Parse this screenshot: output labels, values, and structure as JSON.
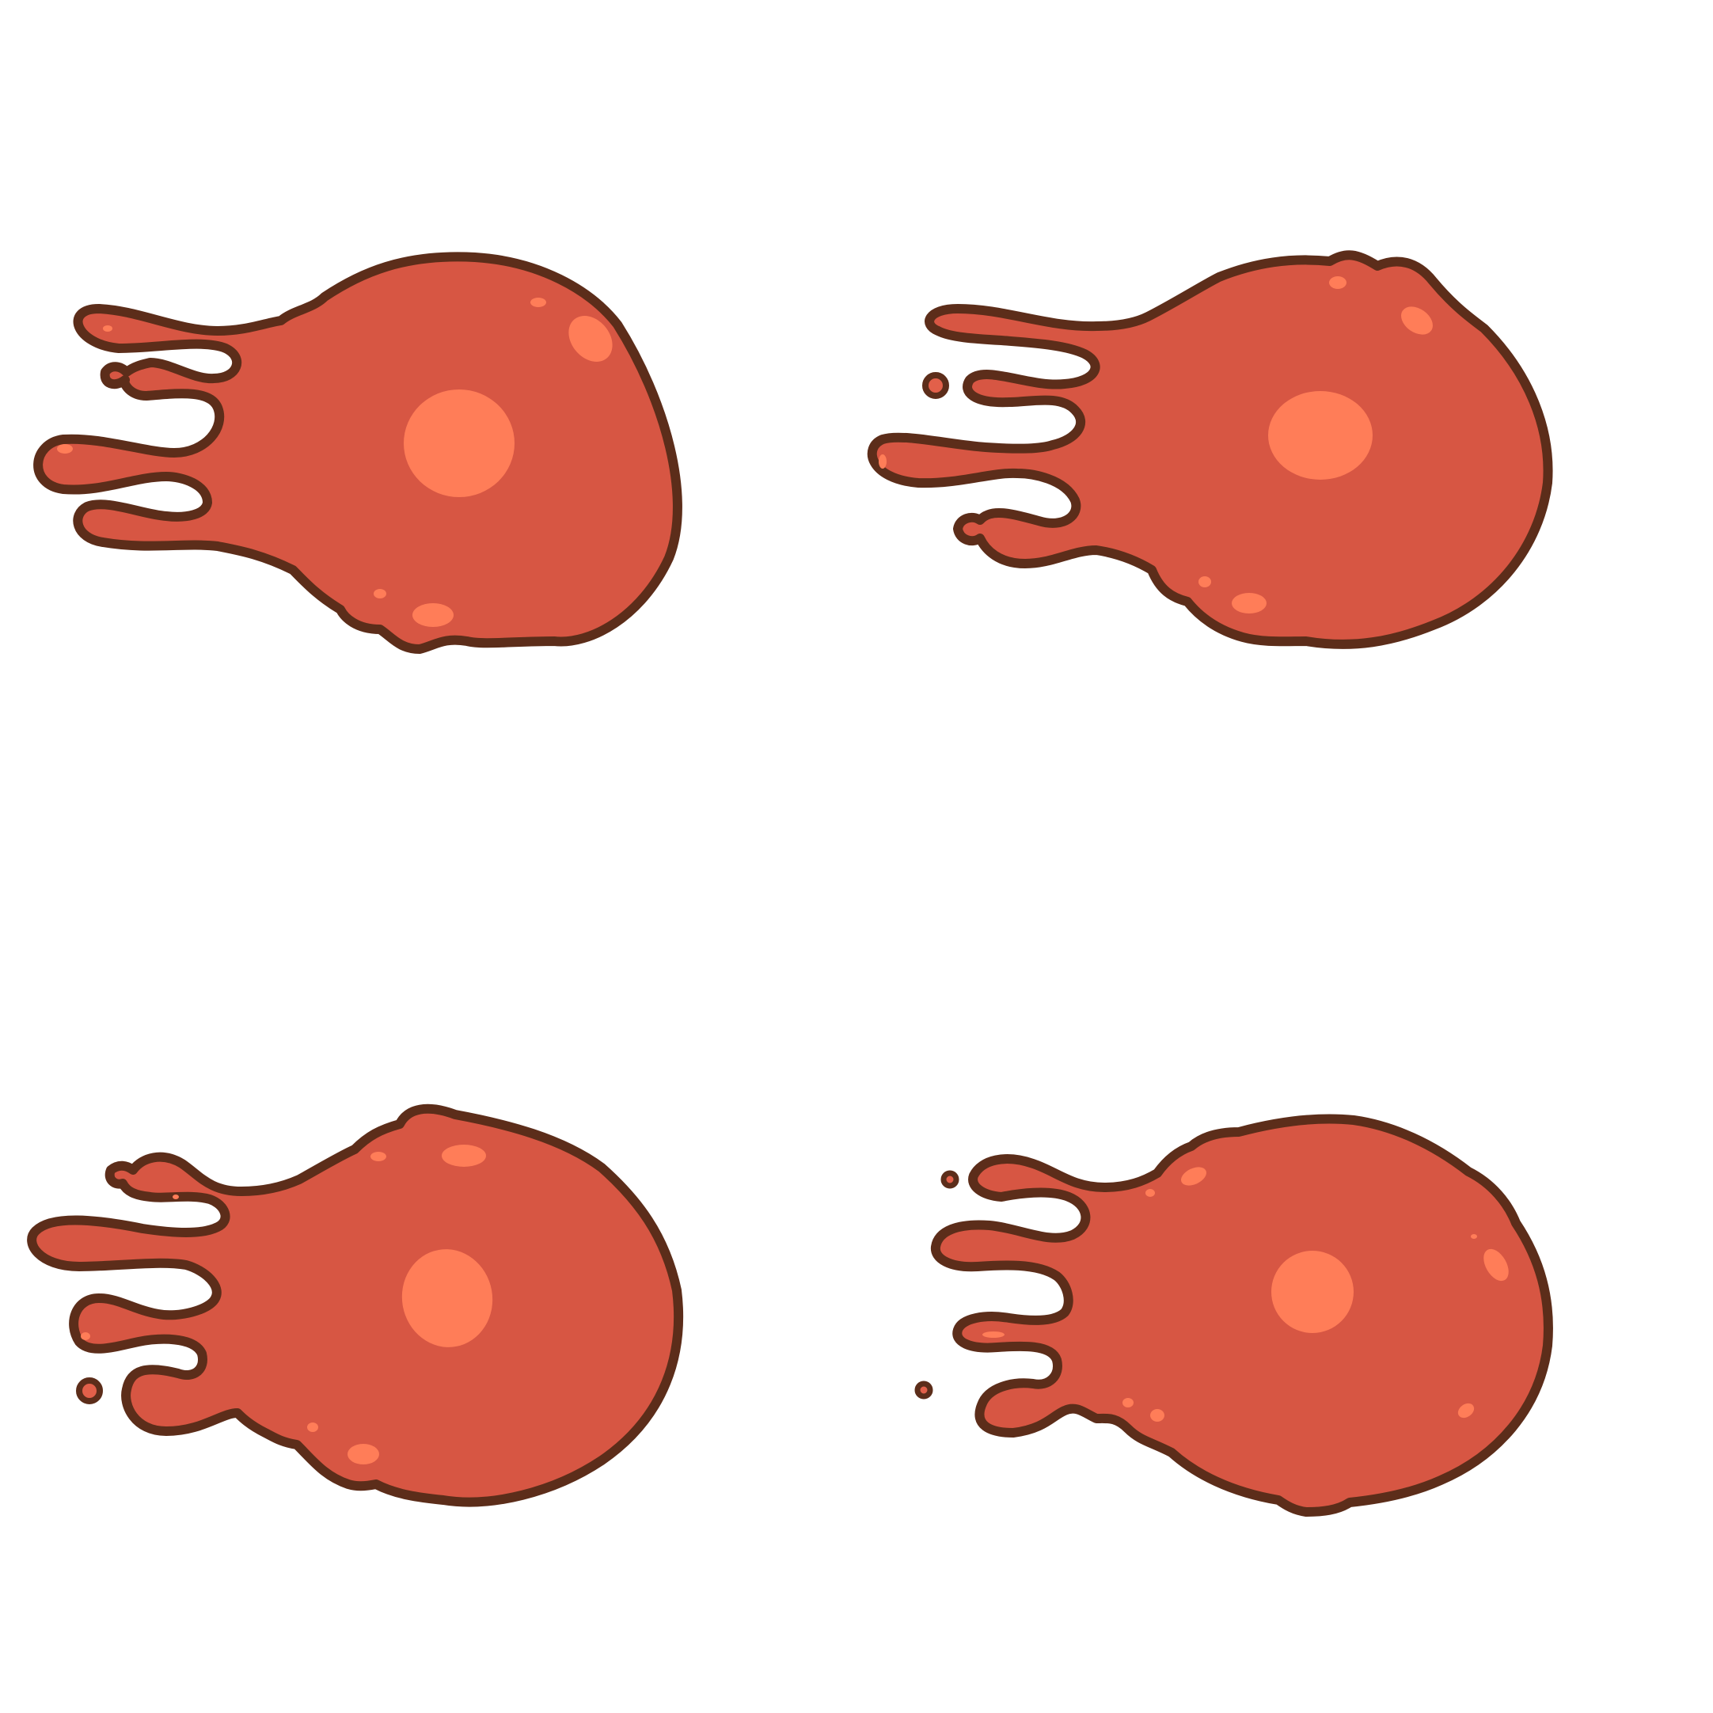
{
  "sprite_sheet": {
    "background_color": "#ffffff",
    "frame_count": 4,
    "palette": {
      "fill": "#d75643",
      "outline": "#5c2d1a",
      "highlight": "#ff7d58",
      "droplet_inner": "#e2604a"
    },
    "frames": [
      {
        "name": "splat-frame-1",
        "icon": "blob-splat-icon"
      },
      {
        "name": "splat-frame-2",
        "icon": "blob-splat-icon"
      },
      {
        "name": "splat-frame-3",
        "icon": "blob-splat-icon"
      },
      {
        "name": "splat-frame-4",
        "icon": "blob-splat-icon"
      }
    ]
  }
}
